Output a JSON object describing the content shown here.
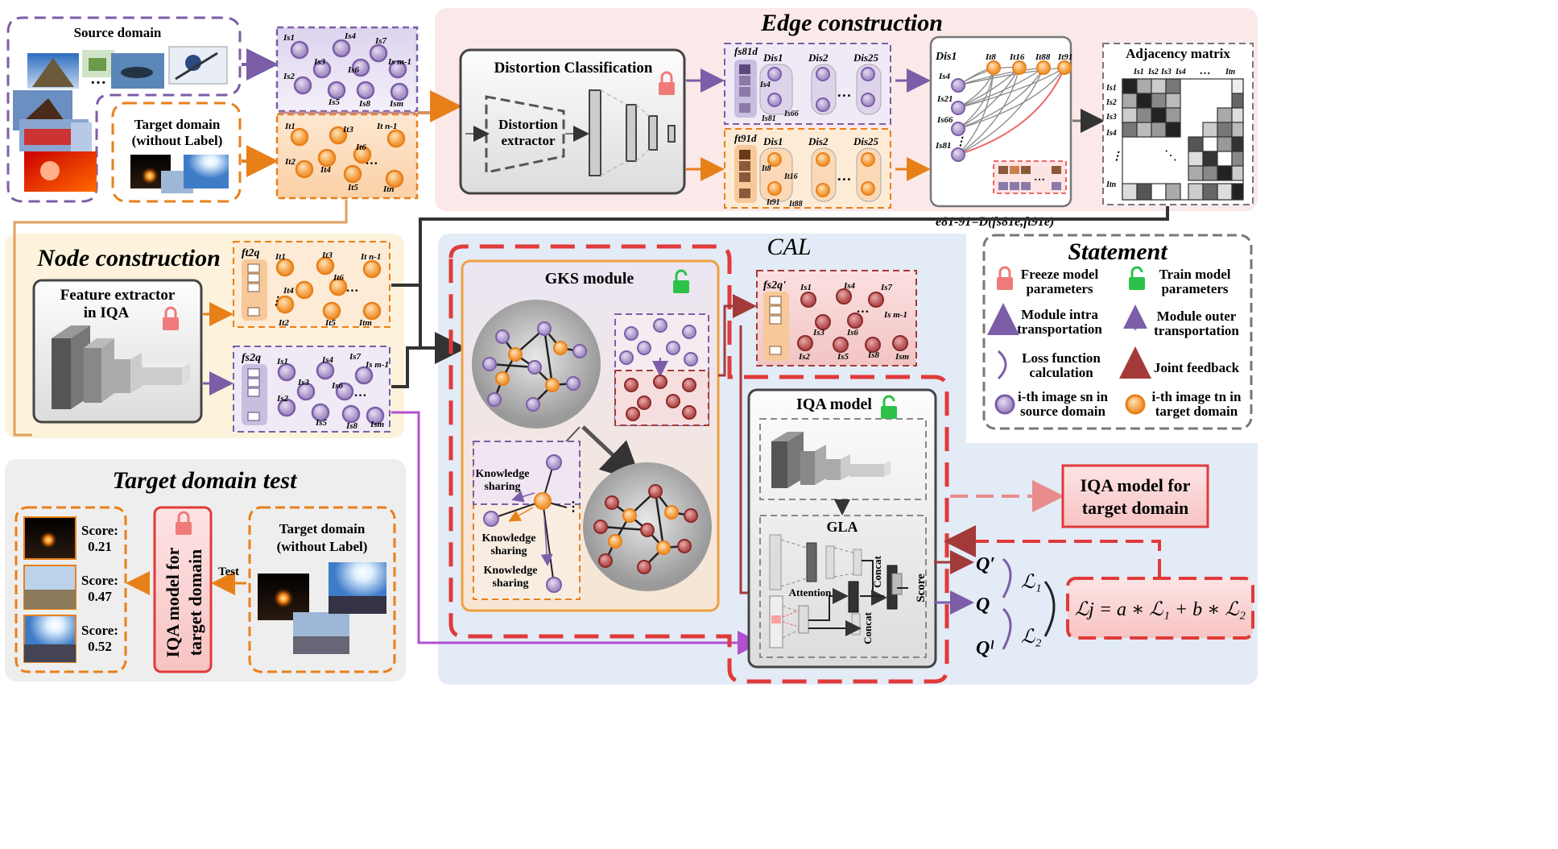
{
  "sections": {
    "source_domain": "Source domain",
    "target_domain_line1": "Target domain",
    "target_domain_line2": "(without Label)",
    "edge_construction": "Edge construction",
    "distortion_classification": "Distortion Classification",
    "distortion_extractor_line1": "Distortion",
    "distortion_extractor_line2": "extractor",
    "adjacency_matrix": "Adjacency matrix",
    "node_construction": "Node construction",
    "feature_extractor_line1": "Feature extractor",
    "feature_extractor_line2": "in IQA",
    "cal": "CAL",
    "gks_module": "GKS module",
    "iqa_model": "IQA model",
    "gla": "GLA",
    "attention": "Attention",
    "concat": "Concat",
    "score": "Score",
    "knowledge_sharing_1a": "Knowledge",
    "knowledge_sharing_1b": "sharing",
    "knowledge_sharing_2a": "Knowledge",
    "knowledge_sharing_2b": "sharing",
    "knowledge_sharing_3a": "Knowledge",
    "knowledge_sharing_3b": "sharing",
    "iqa_target_line1": "IQA model for",
    "iqa_target_line2": "target domain",
    "target_domain_test": "Target domain test",
    "test": "Test",
    "formula_edge": "e81-91 = D(fs81e, ft91e)",
    "formula_joint": "Lj = a * L1 + b * L2"
  },
  "statement": {
    "title": "Statement",
    "freeze_line1": "Freeze model",
    "freeze_line2": "parameters",
    "train_line1": "Train model",
    "train_line2": "parameters",
    "intra_line1": "Module intra",
    "intra_line2": "transportation",
    "outer_line1": "Module outer",
    "outer_line2": "transportation",
    "loss_line1": "Loss function",
    "loss_line2": "calculation",
    "joint": "Joint feedback",
    "src_line1": "i-th image sn in",
    "src_line2": "source domain",
    "tgt_line1": "i-th image tn in",
    "tgt_line2": "target domain"
  },
  "scores": [
    {
      "label": "Score:",
      "value": "0.21"
    },
    {
      "label": "Score:",
      "value": "0.47"
    },
    {
      "label": "Score:",
      "value": "0.52"
    }
  ],
  "colors": {
    "purple": "#7b5ea7",
    "orange": "#e8801a",
    "red": "#e03a3a",
    "dark_red": "#a33a3a",
    "gray": "#555555",
    "edge_bg": "#fbe9ea",
    "node_bg": "#fdf3dc",
    "cal_bg": "#e3ebf6"
  }
}
